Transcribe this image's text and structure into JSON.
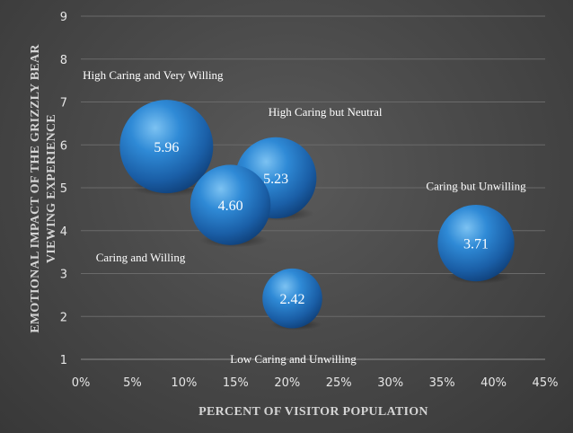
{
  "chart_data": {
    "type": "bubble",
    "xlabel": "PERCENT OF VISITOR POPULATION",
    "ylabel_lines": [
      "EMOTIONAL IMPACT OF THE GRIZZLY BEAR",
      "VIEWING EXPERIENCE"
    ],
    "xlim": [
      0,
      45
    ],
    "ylim": [
      1,
      9
    ],
    "x_ticks": [
      "0%",
      "5%",
      "10%",
      "15%",
      "20%",
      "25%",
      "30%",
      "35%",
      "40%",
      "45%"
    ],
    "y_ticks": [
      "1",
      "2",
      "3",
      "4",
      "5",
      "6",
      "7",
      "8",
      "9"
    ],
    "grid": "horizontal",
    "bubble_color": "#2a7fc8",
    "bubbles": [
      {
        "label": "High Caring and Very Willing",
        "x": 8.3,
        "y": 5.96,
        "value": "5.96",
        "size": 1.0
      },
      {
        "label": "High Caring but Neutral",
        "x": 18.9,
        "y": 5.23,
        "value": "5.23",
        "size": 0.87
      },
      {
        "label": "Caring and Willing",
        "x": 14.5,
        "y": 4.6,
        "value": "4.60",
        "size": 0.86
      },
      {
        "label": "Caring but Unwilling",
        "x": 38.3,
        "y": 3.71,
        "value": "3.71",
        "size": 0.82
      },
      {
        "label": "Low Caring and Unwilling",
        "x": 20.5,
        "y": 2.42,
        "value": "2.42",
        "size": 0.64
      }
    ]
  }
}
